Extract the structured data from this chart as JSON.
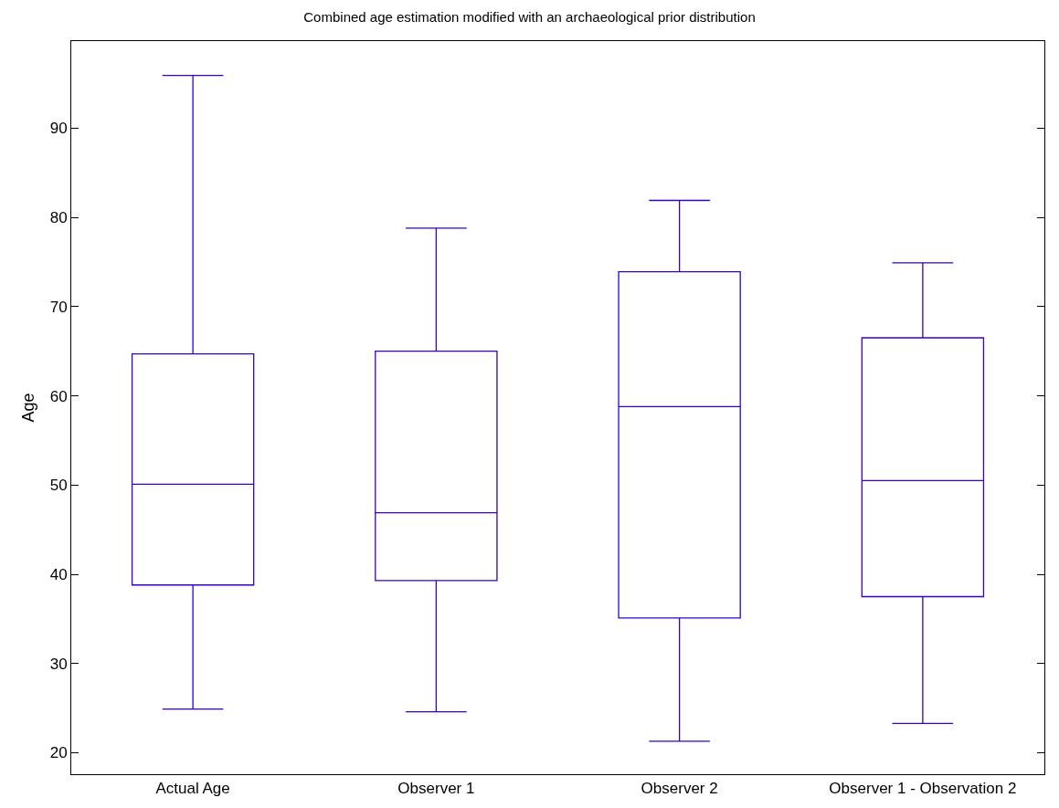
{
  "chart_data": {
    "type": "box",
    "title": "Combined age estimation modified with an archaeological prior distribution",
    "ylabel": "Age",
    "categories": [
      "Actual Age",
      "Observer 1",
      "Observer 2",
      "Observer 1 - Observation 2"
    ],
    "series": [
      {
        "color": "#3300cc",
        "boxes": [
          {
            "low": 24.9,
            "q1": 38.8,
            "median": 50.1,
            "q3": 64.7,
            "high": 95.9
          },
          {
            "low": 24.6,
            "q1": 39.3,
            "median": 46.9,
            "q3": 65.0,
            "high": 78.8
          },
          {
            "low": 21.3,
            "q1": 35.1,
            "median": 58.8,
            "q3": 73.9,
            "high": 81.9
          },
          {
            "low": 23.3,
            "q1": 37.5,
            "median": 50.5,
            "q3": 66.5,
            "high": 74.9
          }
        ]
      }
    ],
    "ylim": [
      17.6,
      99.75
    ],
    "yticks": [
      20,
      30,
      40,
      50,
      60,
      70,
      80,
      90
    ]
  }
}
